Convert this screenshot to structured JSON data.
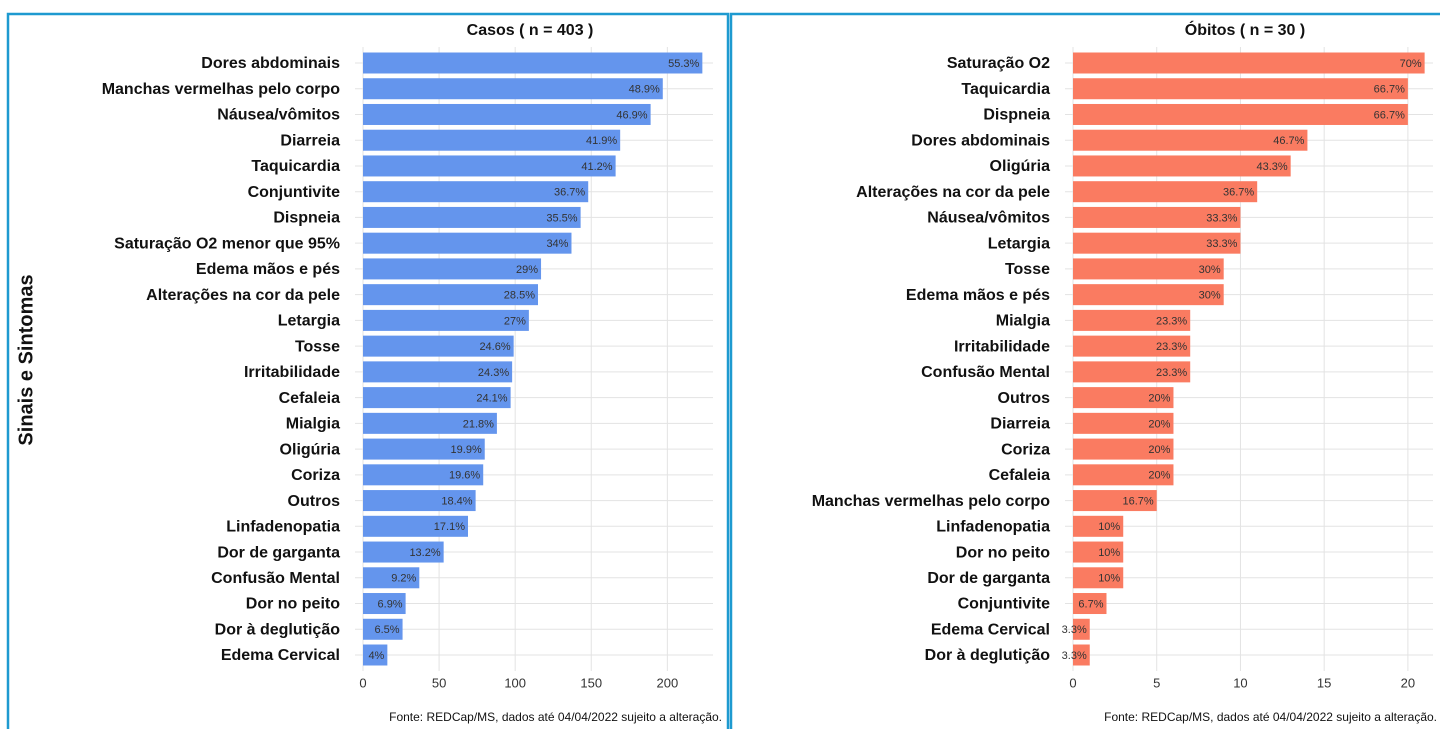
{
  "chart_data": [
    {
      "type": "bar",
      "orientation": "horizontal",
      "title": "Casos ( n =  403 )",
      "ylabel": "Sinais e Sintomas",
      "categories": [
        "Dores abdominais",
        "Manchas vermelhas pelo corpo",
        "Náusea/vômitos",
        "Diarreia",
        "Taquicardia",
        "Conjuntivite",
        "Dispneia",
        "Saturação O2 menor que 95%",
        "Edema mãos e pés",
        "Alterações na cor da pele",
        "Letargia",
        "Tosse",
        "Irritabilidade",
        "Cefaleia",
        "Mialgia",
        "Oligúria",
        "Coriza",
        "Outros",
        "Linfadenopatia",
        "Dor de garganta",
        "Confusão Mental",
        "Dor no peito",
        "Dor à deglutição",
        "Edema Cervical"
      ],
      "values": [
        223,
        197,
        189,
        169,
        166,
        148,
        143,
        137,
        117,
        115,
        109,
        99,
        98,
        97,
        88,
        80,
        79,
        74,
        69,
        53,
        37,
        28,
        26,
        16
      ],
      "value_labels": [
        "55.3%",
        "48.9%",
        "46.9%",
        "41.9%",
        "41.2%",
        "36.7%",
        "35.5%",
        "34%",
        "29%",
        "28.5%",
        "27%",
        "24.6%",
        "24.3%",
        "24.1%",
        "21.8%",
        "19.9%",
        "19.6%",
        "18.4%",
        "17.1%",
        "13.2%",
        "9.2%",
        "6.9%",
        "6.5%",
        "4%"
      ],
      "color": "#6495ed",
      "xlim": [
        0,
        230
      ],
      "xticks": [
        0,
        50,
        100,
        150,
        200
      ],
      "grid": true,
      "source": "Fonte: REDCap/MS, dados até 04/04/2022 sujeito a alteração."
    },
    {
      "type": "bar",
      "orientation": "horizontal",
      "title": "Óbitos ( n =  30 )",
      "categories": [
        "Saturação O2",
        "Taquicardia",
        "Dispneia",
        "Dores abdominais",
        "Oligúria",
        "Alterações na cor da pele",
        "Náusea/vômitos",
        "Letargia",
        "Tosse",
        "Edema mãos e pés",
        "Mialgia",
        "Irritabilidade",
        "Confusão Mental",
        "Outros",
        "Diarreia",
        "Coriza",
        "Cefaleia",
        "Manchas vermelhas pelo corpo",
        "Linfadenopatia",
        "Dor no peito",
        "Dor de garganta",
        "Conjuntivite",
        "Edema Cervical",
        "Dor à deglutição"
      ],
      "values": [
        21,
        20,
        20,
        14,
        13,
        11,
        10,
        10,
        9,
        9,
        7,
        7,
        7,
        6,
        6,
        6,
        6,
        5,
        3,
        3,
        3,
        2,
        1,
        1
      ],
      "value_labels": [
        "70%",
        "66.7%",
        "66.7%",
        "46.7%",
        "43.3%",
        "36.7%",
        "33.3%",
        "33.3%",
        "30%",
        "30%",
        "23.3%",
        "23.3%",
        "23.3%",
        "20%",
        "20%",
        "20%",
        "20%",
        "16.7%",
        "10%",
        "10%",
        "10%",
        "6.7%",
        "3.3%",
        "3.3%"
      ],
      "color": "#fa7b61",
      "xlim": [
        0,
        21.5
      ],
      "xticks": [
        0,
        5,
        10,
        15,
        20
      ],
      "grid": true,
      "source": "Fonte: REDCap/MS, dados até 04/04/2022 sujeito a alteração."
    }
  ]
}
